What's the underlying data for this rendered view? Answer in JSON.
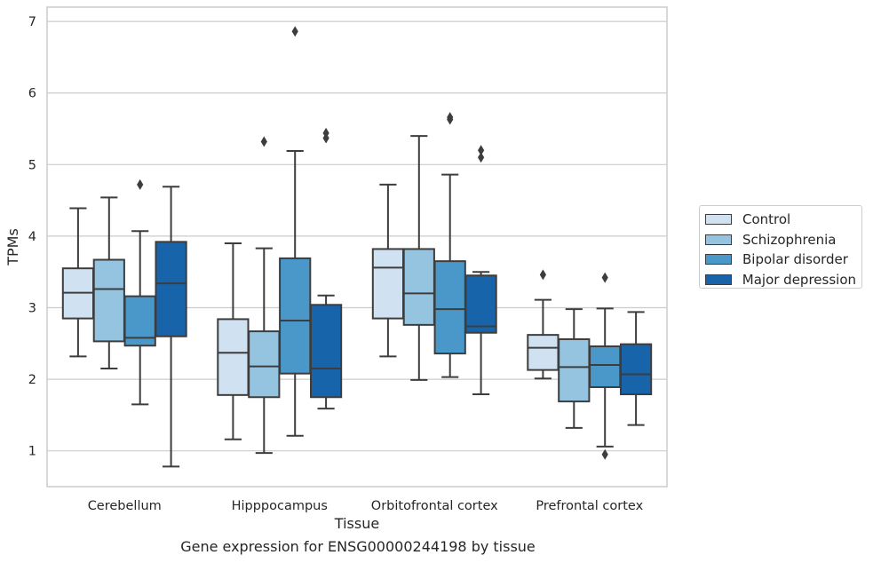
{
  "chart_data": {
    "type": "box",
    "xlabel": "Tissue",
    "ylabel": "TPMs",
    "ylim": [
      0.5,
      7.2
    ],
    "yticks": [
      1,
      2,
      3,
      4,
      5,
      6,
      7
    ],
    "grid": true,
    "legend_position": "right",
    "categories": [
      "Cerebellum",
      "Hipppocampus",
      "Orbitofrontal cortex",
      "Prefrontal cortex"
    ],
    "series": [
      {
        "name": "Control",
        "color": "#d0e1f2",
        "boxes": [
          {
            "whislo": 2.32,
            "q1": 2.85,
            "med": 3.21,
            "q3": 3.55,
            "whishi": 4.39,
            "fliers": []
          },
          {
            "whislo": 1.16,
            "q1": 1.78,
            "med": 2.37,
            "q3": 2.84,
            "whishi": 3.9,
            "fliers": []
          },
          {
            "whislo": 2.32,
            "q1": 2.85,
            "med": 3.56,
            "q3": 3.82,
            "whishi": 4.72,
            "fliers": []
          },
          {
            "whislo": 2.01,
            "q1": 2.13,
            "med": 2.44,
            "q3": 2.62,
            "whishi": 3.11,
            "fliers": [
              3.46
            ]
          }
        ]
      },
      {
        "name": "Schizophrenia",
        "color": "#94c4df",
        "boxes": [
          {
            "whislo": 2.15,
            "q1": 2.53,
            "med": 3.26,
            "q3": 3.67,
            "whishi": 4.54,
            "fliers": []
          },
          {
            "whislo": 0.97,
            "q1": 1.75,
            "med": 2.18,
            "q3": 2.67,
            "whishi": 3.83,
            "fliers": [
              5.32
            ]
          },
          {
            "whislo": 1.99,
            "q1": 2.76,
            "med": 3.2,
            "q3": 3.82,
            "whishi": 5.4,
            "fliers": []
          },
          {
            "whislo": 1.32,
            "q1": 1.69,
            "med": 2.17,
            "q3": 2.56,
            "whishi": 2.98,
            "fliers": []
          }
        ]
      },
      {
        "name": "Bipolar disorder",
        "color": "#4a98c9",
        "boxes": [
          {
            "whislo": 1.65,
            "q1": 2.47,
            "med": 2.58,
            "q3": 3.16,
            "whishi": 4.07,
            "fliers": [
              4.72
            ]
          },
          {
            "whislo": 1.21,
            "q1": 2.08,
            "med": 2.82,
            "q3": 3.69,
            "whishi": 5.19,
            "fliers": [
              6.86
            ]
          },
          {
            "whislo": 2.03,
            "q1": 2.36,
            "med": 2.98,
            "q3": 3.65,
            "whishi": 4.86,
            "fliers": [
              5.63,
              5.66
            ]
          },
          {
            "whislo": 1.06,
            "q1": 1.89,
            "med": 2.2,
            "q3": 2.46,
            "whishi": 2.99,
            "fliers": [
              3.42,
              0.95
            ]
          }
        ]
      },
      {
        "name": "Major depression",
        "color": "#1764ab",
        "boxes": [
          {
            "whislo": 0.78,
            "q1": 2.6,
            "med": 3.34,
            "q3": 3.92,
            "whishi": 4.69,
            "fliers": []
          },
          {
            "whislo": 1.59,
            "q1": 1.75,
            "med": 2.15,
            "q3": 3.04,
            "whishi": 3.17,
            "fliers": [
              5.37,
              5.44
            ]
          },
          {
            "whislo": 1.79,
            "q1": 2.65,
            "med": 2.74,
            "q3": 3.45,
            "whishi": 3.5,
            "fliers": [
              5.1,
              5.2
            ]
          },
          {
            "whislo": 1.36,
            "q1": 1.79,
            "med": 2.07,
            "q3": 2.49,
            "whishi": 2.94,
            "fliers": []
          }
        ]
      }
    ]
  },
  "caption": "Gene expression for ENSG00000244198 by tissue"
}
